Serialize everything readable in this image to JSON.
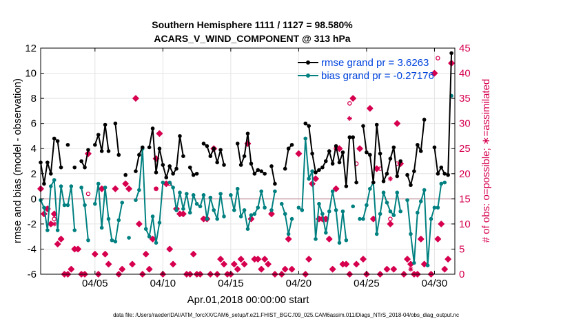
{
  "chart_data": {
    "type": "line",
    "title_line1": "Southern Hemisphere 1111 / 1127 = 98.580%",
    "title_line2": "ACARS_V_WIND_COMPONENT @ 313 hPa",
    "xlabel": "Apr.01,2018 00:00:00 start",
    "ylabel_left": "rmse and bias (model - observation)",
    "ylabel_right": "# of obs: o=possible; ∗=assimilated",
    "footnote": "data file: /Users/raeder/DAI/ATM_forcXX/CAM6_setup/f.e21.FHIST_BGC.f09_025.CAM6assim.011/Diags_NTrS_2018-04/obs_diag_output.nc",
    "xlim": [
      1,
      31.5
    ],
    "ylim_left": [
      -6,
      12
    ],
    "ylim_right": [
      0,
      45
    ],
    "x_ticks": [
      5,
      10,
      15,
      20,
      25,
      30
    ],
    "x_tick_labels": [
      "04/05",
      "04/10",
      "04/15",
      "04/20",
      "04/25",
      "04/30"
    ],
    "y_left_ticks": [
      -6,
      -4,
      -2,
      0,
      2,
      4,
      6,
      8,
      10,
      12
    ],
    "y_right_ticks": [
      0,
      5,
      10,
      15,
      20,
      25,
      30,
      35,
      40,
      45
    ],
    "grid": true,
    "legend_position": "top-right",
    "colors": {
      "rmse": "#000000",
      "bias": "#008080",
      "obs": "#d6004f",
      "legend_text": "#0044dd",
      "zero_line": "#c8a0a8"
    },
    "series": [
      {
        "name": "rmse grand pr = 3.6263",
        "values": [
          [
            1.0,
            2.9
          ],
          [
            1.25,
            1.2
          ],
          [
            1.5,
            2.9
          ],
          [
            1.75,
            2.0
          ],
          [
            2.0,
            4.8
          ],
          [
            2.25,
            4.6
          ],
          [
            2.5,
            2.5
          ],
          [
            3.0,
            4.3
          ],
          [
            3.5,
            2.5
          ],
          [
            4.0,
            3.0
          ],
          [
            4.25,
            2.5
          ],
          [
            4.5,
            3.9
          ],
          [
            5.0,
            4.3
          ],
          [
            5.25,
            5.1
          ],
          [
            5.5,
            3.8
          ],
          [
            5.75,
            5.9
          ],
          [
            6.0,
            3.8
          ],
          [
            6.5,
            6.0
          ],
          [
            6.75,
            3.5
          ],
          [
            7.25,
            1.9
          ],
          [
            8.0,
            2.2
          ],
          [
            8.25,
            3.5
          ],
          [
            8.5,
            4.1
          ],
          [
            9.0,
            4.1
          ],
          [
            9.25,
            5.6
          ],
          [
            9.5,
            2.1
          ],
          [
            9.75,
            4.0
          ],
          [
            10.0,
            2.7
          ],
          [
            10.25,
            1.7
          ],
          [
            10.5,
            2.6
          ],
          [
            10.75,
            2.0
          ],
          [
            11.0,
            2.4
          ],
          [
            11.25,
            5.0
          ],
          [
            11.5,
            3.4
          ],
          [
            12.0,
            2.5
          ],
          [
            12.25,
            1.9
          ],
          [
            12.5,
            2.0
          ],
          [
            13.0,
            4.4
          ],
          [
            13.25,
            4.2
          ],
          [
            13.5,
            3.4
          ],
          [
            13.75,
            4.0
          ],
          [
            14.0,
            2.9
          ],
          [
            14.25,
            3.9
          ],
          [
            14.5,
            2.7
          ],
          [
            15.5,
            4.4
          ],
          [
            15.75,
            2.7
          ],
          [
            16.0,
            3.4
          ],
          [
            16.25,
            5.2
          ],
          [
            16.5,
            2.8
          ],
          [
            16.75,
            2.0
          ],
          [
            17.0,
            2.3
          ],
          [
            17.25,
            2.2
          ],
          [
            17.5,
            2.0
          ],
          [
            18.0,
            2.6
          ],
          [
            18.25,
            1.2
          ],
          [
            19.0,
            2.4
          ],
          [
            19.25,
            4.0
          ],
          [
            19.5,
            4.3
          ],
          [
            20.5,
            6.0
          ],
          [
            20.75,
            5.8
          ],
          [
            21.0,
            3.6
          ],
          [
            21.25,
            2.1
          ],
          [
            21.5,
            2.3
          ],
          [
            21.75,
            2.5
          ],
          [
            22.0,
            3.0
          ],
          [
            22.25,
            3.8
          ],
          [
            22.5,
            2.8
          ],
          [
            22.75,
            4.2
          ],
          [
            23.0,
            2.9
          ],
          [
            23.25,
            3.7
          ],
          [
            23.5,
            1.0
          ],
          [
            23.75,
            4.9
          ],
          [
            24.0,
            4.9
          ],
          [
            24.25,
            1.3
          ],
          [
            24.75,
            5.8
          ],
          [
            25.0,
            3.7
          ],
          [
            25.25,
            3.5
          ],
          [
            25.5,
            1.3
          ],
          [
            25.75,
            5.9
          ],
          [
            26.0,
            3.6
          ],
          [
            26.25,
            1.4
          ],
          [
            26.5,
            2.0
          ],
          [
            26.75,
            3.2
          ],
          [
            27.0,
            4.1
          ],
          [
            27.25,
            1.8
          ],
          [
            27.5,
            3.0
          ],
          [
            28.0,
            1.9
          ],
          [
            28.25,
            1.1
          ],
          [
            28.5,
            2.2
          ],
          [
            28.75,
            4.3
          ],
          [
            29.0,
            3.8
          ],
          [
            29.25,
            6.3
          ],
          [
            30.0,
            4.1
          ],
          [
            30.25,
            2.0
          ],
          [
            30.5,
            2.5
          ],
          [
            30.75,
            2.0
          ],
          [
            31.0,
            1.9
          ],
          [
            31.25,
            11.6
          ]
        ]
      },
      {
        "name": "bias grand pr = -0.27176",
        "values": [
          [
            1.0,
            -0.1
          ],
          [
            1.25,
            -0.7
          ],
          [
            1.5,
            -2.5
          ],
          [
            1.75,
            1.0
          ],
          [
            2.0,
            1.5
          ],
          [
            2.25,
            -2.5
          ],
          [
            2.5,
            1.0
          ],
          [
            2.75,
            -0.5
          ],
          [
            3.0,
            -0.5
          ],
          [
            3.25,
            1.0
          ],
          [
            3.5,
            -2.5
          ],
          [
            4.0,
            0.9
          ],
          [
            4.25,
            -0.5
          ],
          [
            4.5,
            -3.3
          ],
          [
            5.0,
            -0.4
          ],
          [
            5.25,
            1.2
          ],
          [
            5.5,
            -2.3
          ],
          [
            5.75,
            0.9
          ],
          [
            6.0,
            -1.6
          ],
          [
            6.25,
            -3.3
          ],
          [
            6.5,
            -3.4
          ],
          [
            6.75,
            -1.7
          ],
          [
            7.0,
            -0.3
          ],
          [
            7.5,
            -3.1
          ],
          [
            8.0,
            -0.1
          ],
          [
            8.25,
            0.7
          ],
          [
            8.5,
            4.0
          ],
          [
            8.75,
            -2.4
          ],
          [
            9.0,
            -3.0
          ],
          [
            9.25,
            -1.4
          ],
          [
            9.5,
            -3.5
          ],
          [
            9.75,
            -1.9
          ],
          [
            10.0,
            1.3
          ],
          [
            10.5,
            1.3
          ],
          [
            10.75,
            0.9
          ],
          [
            11.0,
            -0.9
          ],
          [
            11.25,
            0.5
          ],
          [
            11.5,
            -0.8
          ],
          [
            11.75,
            0.4
          ],
          [
            12.0,
            -1.1
          ],
          [
            12.25,
            0.3
          ],
          [
            12.5,
            -0.4
          ],
          [
            12.75,
            -0.6
          ],
          [
            13.0,
            0.3
          ],
          [
            13.25,
            -1.6
          ],
          [
            13.5,
            0.1
          ],
          [
            13.75,
            -0.9
          ],
          [
            14.0,
            -1.6
          ],
          [
            14.25,
            0.4
          ],
          [
            14.5,
            -1.4
          ],
          [
            15.0,
            0.3
          ],
          [
            15.25,
            -0.9
          ],
          [
            15.5,
            0.8
          ],
          [
            15.75,
            -1.4
          ],
          [
            16.0,
            -0.9
          ],
          [
            16.25,
            -2.4
          ],
          [
            16.5,
            -1.3
          ],
          [
            16.75,
            -1.2
          ],
          [
            17.0,
            -0.7
          ],
          [
            17.25,
            0.6
          ],
          [
            17.5,
            -0.7
          ],
          [
            18.0,
            -0.9
          ],
          [
            18.25,
            0.6
          ],
          [
            18.75,
            -0.4
          ],
          [
            19.0,
            -1.2
          ],
          [
            19.25,
            -2.8
          ],
          [
            19.5,
            -1.6
          ],
          [
            20.0,
            -0.7
          ],
          [
            20.25,
            -0.9
          ],
          [
            20.5,
            4.8
          ],
          [
            20.75,
            1.6
          ],
          [
            21.0,
            2.2
          ],
          [
            21.25,
            -3.2
          ],
          [
            21.5,
            -0.4
          ],
          [
            21.75,
            -1.2
          ],
          [
            22.0,
            -2.7
          ],
          [
            22.25,
            -1.0
          ],
          [
            22.5,
            0.6
          ],
          [
            22.75,
            -0.9
          ],
          [
            23.0,
            -3.5
          ],
          [
            23.25,
            -1.0
          ],
          [
            23.5,
            -3.3
          ],
          [
            24.0,
            -0.6
          ],
          [
            24.5,
            -1.6
          ],
          [
            24.75,
            -1.6
          ],
          [
            25.0,
            -0.5
          ],
          [
            25.25,
            0.8
          ],
          [
            25.5,
            1.3
          ],
          [
            25.75,
            -2.8
          ],
          [
            26.0,
            -1.2
          ],
          [
            26.25,
            0.5
          ],
          [
            26.5,
            -0.3
          ],
          [
            26.75,
            -1.0
          ],
          [
            27.0,
            -1.3
          ],
          [
            27.25,
            0.5
          ],
          [
            27.5,
            -1.0
          ],
          [
            28.0,
            -0.1
          ],
          [
            28.25,
            -2.8
          ],
          [
            28.5,
            -5.1
          ],
          [
            28.75,
            -1.1
          ],
          [
            29.0,
            -0.2
          ],
          [
            29.25,
            0.7
          ],
          [
            29.5,
            -5.3
          ],
          [
            29.75,
            -1.6
          ],
          [
            30.0,
            -0.7
          ],
          [
            30.25,
            -0.7
          ],
          [
            30.5,
            1.2
          ],
          [
            30.75,
            1.3
          ],
          [
            31.25,
            8.2
          ]
        ]
      }
    ],
    "obs_possible": [
      [
        1.0,
        17
      ],
      [
        1.25,
        12
      ],
      [
        1.5,
        13
      ],
      [
        1.75,
        10
      ],
      [
        2.0,
        12
      ],
      [
        2.25,
        6
      ],
      [
        2.5,
        7
      ],
      [
        2.75,
        0
      ],
      [
        3.0,
        0
      ],
      [
        3.25,
        1
      ],
      [
        3.5,
        5
      ],
      [
        3.75,
        5
      ],
      [
        4.0,
        0
      ],
      [
        4.25,
        0
      ],
      [
        4.5,
        24
      ],
      [
        5.0,
        4
      ],
      [
        5.25,
        0
      ],
      [
        5.5,
        17
      ],
      [
        5.75,
        4
      ],
      [
        6.0,
        2
      ],
      [
        6.5,
        17
      ],
      [
        6.75,
        0
      ],
      [
        7.0,
        1
      ],
      [
        7.25,
        18
      ],
      [
        7.5,
        17
      ],
      [
        7.75,
        2
      ],
      [
        8.0,
        35
      ],
      [
        8.25,
        10
      ],
      [
        8.5,
        0
      ],
      [
        8.75,
        4
      ],
      [
        9.0,
        1
      ],
      [
        9.25,
        7
      ],
      [
        9.5,
        23
      ],
      [
        9.75,
        28
      ],
      [
        10.0,
        0
      ],
      [
        10.25,
        18
      ],
      [
        10.5,
        5
      ],
      [
        10.75,
        2
      ],
      [
        11.0,
        13
      ],
      [
        11.25,
        12
      ],
      [
        11.5,
        12
      ],
      [
        11.75,
        0
      ],
      [
        12.0,
        0
      ],
      [
        12.25,
        4
      ],
      [
        12.5,
        0
      ],
      [
        12.75,
        0
      ],
      [
        13.0,
        11
      ],
      [
        13.25,
        11
      ],
      [
        13.5,
        0
      ],
      [
        13.75,
        25
      ],
      [
        14.0,
        0
      ],
      [
        14.25,
        3
      ],
      [
        14.5,
        2
      ],
      [
        14.75,
        0
      ],
      [
        15.0,
        0
      ],
      [
        15.25,
        2
      ],
      [
        15.5,
        1
      ],
      [
        15.75,
        3
      ],
      [
        16.0,
        2
      ],
      [
        16.25,
        26
      ],
      [
        16.5,
        11
      ],
      [
        16.75,
        3
      ],
      [
        17.0,
        3
      ],
      [
        17.25,
        1
      ],
      [
        17.5,
        3
      ],
      [
        17.75,
        2
      ],
      [
        18.0,
        12
      ],
      [
        18.25,
        0
      ],
      [
        18.75,
        0
      ],
      [
        19.0,
        1
      ],
      [
        19.25,
        7
      ],
      [
        19.5,
        1
      ],
      [
        20.0,
        24
      ],
      [
        20.5,
        0
      ],
      [
        20.75,
        3
      ],
      [
        21.0,
        18
      ],
      [
        21.25,
        19
      ],
      [
        21.5,
        11
      ],
      [
        21.75,
        11
      ],
      [
        22.0,
        11
      ],
      [
        22.25,
        7
      ],
      [
        22.5,
        1
      ],
      [
        22.75,
        17
      ],
      [
        23.0,
        25
      ],
      [
        23.25,
        2
      ],
      [
        23.5,
        2
      ],
      [
        23.75,
        0
      ],
      [
        24.0,
        35
      ],
      [
        24.25,
        2
      ],
      [
        24.5,
        25
      ],
      [
        24.75,
        3
      ],
      [
        25.0,
        0
      ],
      [
        25.25,
        33
      ],
      [
        25.5,
        11
      ],
      [
        25.75,
        21
      ],
      [
        26.0,
        0
      ],
      [
        26.5,
        1
      ],
      [
        26.75,
        10
      ],
      [
        27.0,
        1
      ],
      [
        27.25,
        30
      ],
      [
        27.5,
        22
      ],
      [
        27.75,
        0
      ],
      [
        28.0,
        3
      ],
      [
        28.25,
        2
      ],
      [
        28.5,
        0
      ],
      [
        28.75,
        0
      ],
      [
        29.0,
        7
      ],
      [
        29.25,
        2
      ],
      [
        29.75,
        0
      ],
      [
        30.0,
        40
      ],
      [
        30.25,
        7
      ],
      [
        30.5,
        10
      ],
      [
        30.75,
        1
      ],
      [
        31.0,
        3
      ],
      [
        31.25,
        42
      ]
    ],
    "obs_possible_open": [
      [
        2.0,
        11
      ],
      [
        4.5,
        16
      ],
      [
        9.5,
        17
      ],
      [
        10.5,
        18
      ],
      [
        22.75,
        25
      ],
      [
        23.75,
        34
      ],
      [
        24.25,
        22
      ],
      [
        26.0,
        21
      ],
      [
        26.75,
        11
      ],
      [
        27.25,
        22
      ],
      [
        30.25,
        43
      ]
    ],
    "obs_assimilated_visible": [
      [
        2.0,
        10
      ],
      [
        9.5,
        17
      ],
      [
        23.75,
        31
      ],
      [
        26.75,
        19
      ],
      [
        28.25,
        1
      ]
    ]
  }
}
